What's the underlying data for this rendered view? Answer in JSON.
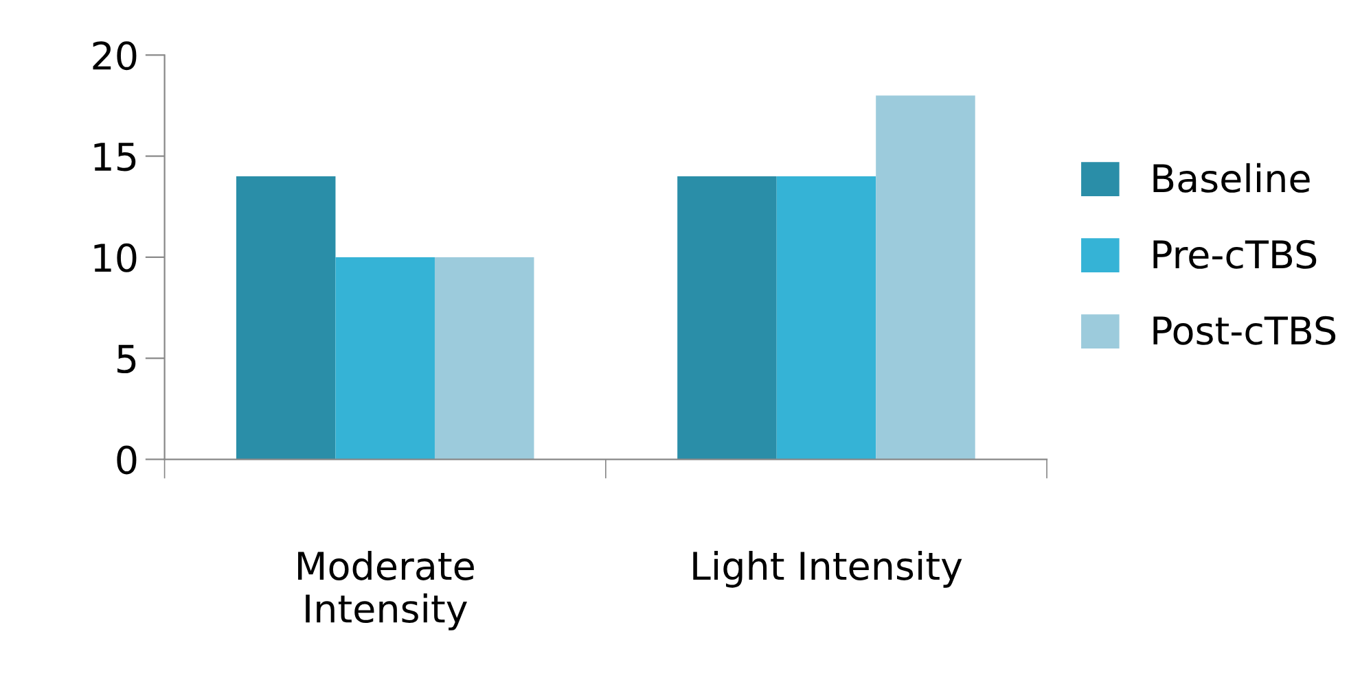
{
  "chart_data": {
    "type": "bar",
    "categories": [
      "Moderate\nIntensity",
      "Light Intensity"
    ],
    "series": [
      {
        "name": "Baseline",
        "color": "#2a8ea8",
        "values": [
          14,
          14
        ]
      },
      {
        "name": "Pre-cTBS",
        "color": "#35b3d6",
        "values": [
          10,
          14
        ]
      },
      {
        "name": "Post-cTBS",
        "color": "#9ccbdc",
        "values": [
          10,
          18
        ]
      }
    ],
    "ylim": [
      0,
      20
    ],
    "yticks": [
      0,
      5,
      10,
      15,
      20
    ],
    "grid": false,
    "legend": "right"
  }
}
